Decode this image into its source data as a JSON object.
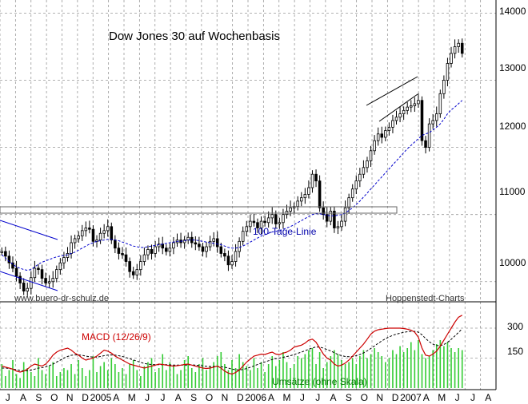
{
  "chart_data": [
    {
      "type": "candlestick",
      "title": "Dow Jones 30 auf Wochenbasis",
      "source_left": "www.buero-dr-schulz.de",
      "source_right": "Hoppenstedt-Charts",
      "y_ticks": [
        "14000",
        "13000",
        "12000",
        "11000",
        "10000"
      ],
      "ylim": [
        9700,
        14100
      ],
      "x_ticks": [
        "J",
        "A",
        "S",
        "O",
        "N",
        "D",
        "2005",
        "A",
        "M",
        "J",
        "J",
        "A",
        "S",
        "O",
        "N",
        "D",
        "2006",
        "A",
        "M",
        "J",
        "J",
        "A",
        "S",
        "O",
        "N",
        "D",
        "2007",
        "A",
        "M",
        "J",
        "J",
        "A"
      ],
      "moving_average_label": "100-Tage-Linie",
      "close_series": {
        "name": "Dow Jones 30",
        "values": [
          10450,
          10380,
          10280,
          10200,
          10080,
          9980,
          9860,
          9900,
          10060,
          10200,
          10180,
          10050,
          9980,
          10000,
          10050,
          10180,
          10280,
          10360,
          10420,
          10580,
          10640,
          10680,
          10760,
          10800,
          10780,
          10600,
          10620,
          10720,
          10760,
          10820,
          10620,
          10500,
          10420,
          10400,
          10300,
          10150,
          10100,
          10180,
          10300,
          10400,
          10480,
          10420,
          10520,
          10560,
          10500,
          10450,
          10500,
          10580,
          10620,
          10580,
          10620,
          10660,
          10580,
          10560,
          10520,
          10450,
          10520,
          10600,
          10640,
          10520,
          10420,
          10380,
          10250,
          10300,
          10450,
          10600,
          10750,
          10820,
          10900,
          10880,
          10800,
          10900,
          10880,
          10950,
          11000,
          10860,
          10880,
          11000,
          11050,
          11100,
          11120,
          11200,
          11250,
          11300,
          11400,
          11600,
          11500,
          11100,
          11000,
          10900,
          11050,
          10800,
          10820,
          10900,
          11100,
          11250,
          11380,
          11500,
          11600,
          11700,
          11800,
          11950,
          12100,
          12200,
          12150,
          12250,
          12300,
          12400,
          12450,
          12500,
          12550,
          12600,
          12620,
          12650,
          12700,
          12100,
          12000,
          12350,
          12400,
          12500,
          12800,
          13000,
          13250,
          13400,
          13500,
          13550,
          13400
        ]
      },
      "moving_average": {
        "name": "100-Tage-Linie",
        "values": [
          10400,
          10350,
          10300,
          10260,
          10220,
          10200,
          10180,
          10170,
          10180,
          10220,
          10260,
          10290,
          10310,
          10330,
          10350,
          10370,
          10380,
          10390,
          10400,
          10420,
          10440,
          10470,
          10500,
          10530,
          10560,
          10580,
          10600,
          10610,
          10620,
          10630,
          10630,
          10620,
          10610,
          10590,
          10570,
          10550,
          10530,
          10520,
          10510,
          10510,
          10520,
          10530,
          10540,
          10550,
          10560,
          10570,
          10580,
          10590,
          10600,
          10600,
          10610,
          10620,
          10620,
          10620,
          10610,
          10600,
          10590,
          10580,
          10570,
          10560,
          10550,
          10530,
          10510,
          10500,
          10500,
          10510,
          10530,
          10560,
          10590,
          10620,
          10650,
          10680,
          10700,
          10720,
          10740,
          10750,
          10760,
          10780,
          10800,
          10820,
          10850,
          10880,
          10910,
          10940,
          10970,
          11000,
          11010,
          11010,
          11000,
          10990,
          10980,
          10980,
          10990,
          11000,
          11020,
          11060,
          11100,
          11150,
          11200,
          11260,
          11320,
          11380,
          11440,
          11500,
          11560,
          11620,
          11680,
          11740,
          11800,
          11860,
          11920,
          11980,
          12030,
          12080,
          12130,
          12180,
          12200,
          12220,
          12260,
          12300,
          12350,
          12420,
          12500,
          12560,
          12600,
          12650,
          12700
        ]
      }
    },
    {
      "type": "line",
      "series": [
        {
          "name": "MACD (12/26/9)",
          "color": "#cc0000"
        },
        {
          "name": "Signal",
          "color": "#000000"
        }
      ],
      "volume_label": "Umsätze (ohne Skala)",
      "y_ticks": [
        "300",
        "150"
      ],
      "ylim": [
        0,
        400
      ],
      "macd_values": [
        110,
        105,
        100,
        95,
        85,
        80,
        85,
        95,
        110,
        120,
        115,
        110,
        120,
        140,
        165,
        180,
        190,
        195,
        200,
        190,
        175,
        165,
        150,
        140,
        145,
        150,
        160,
        175,
        190,
        185,
        175,
        160,
        150,
        140,
        130,
        120,
        115,
        110,
        105,
        100,
        105,
        110,
        115,
        120,
        118,
        115,
        112,
        110,
        112,
        115,
        118,
        120,
        115,
        110,
        105,
        100,
        98,
        100,
        105,
        110,
        100,
        85,
        75,
        70,
        78,
        90,
        110,
        130,
        145,
        160,
        165,
        170,
        168,
        175,
        180,
        170,
        168,
        175,
        180,
        190,
        205,
        210,
        215,
        225,
        240,
        245,
        230,
        200,
        170,
        150,
        140,
        120,
        110,
        115,
        125,
        140,
        160,
        180,
        200,
        220,
        245,
        270,
        285,
        292,
        295,
        298,
        300,
        300,
        300,
        300,
        298,
        295,
        290,
        280,
        255,
        200,
        165,
        160,
        170,
        185,
        210,
        240,
        270,
        300,
        330,
        355,
        365
      ],
      "signal_values": [
        100,
        100,
        98,
        95,
        92,
        88,
        86,
        87,
        90,
        95,
        100,
        102,
        106,
        112,
        120,
        130,
        140,
        150,
        158,
        164,
        166,
        166,
        164,
        160,
        157,
        155,
        155,
        158,
        162,
        165,
        166,
        165,
        162,
        158,
        153,
        147,
        141,
        135,
        129,
        123,
        120,
        118,
        117,
        117,
        117,
        117,
        116,
        115,
        115,
        115,
        115,
        116,
        116,
        115,
        113,
        111,
        109,
        108,
        108,
        108,
        107,
        104,
        100,
        95,
        92,
        91,
        93,
        98,
        104,
        111,
        118,
        125,
        131,
        137,
        143,
        147,
        150,
        154,
        158,
        162,
        168,
        174,
        180,
        187,
        194,
        201,
        206,
        205,
        200,
        193,
        186,
        177,
        168,
        162,
        158,
        157,
        158,
        162,
        168,
        176,
        186,
        198,
        211,
        224,
        236,
        247,
        256,
        264,
        270,
        275,
        279,
        282,
        284,
        284,
        280,
        267,
        248,
        232,
        220,
        213,
        212,
        218,
        229,
        244,
        261,
        279,
        296
      ],
      "volume_values": [
        120,
        60,
        90,
        140,
        70,
        50,
        130,
        100,
        80,
        60,
        150,
        90,
        70,
        110,
        130,
        60,
        80,
        100,
        90,
        120,
        70,
        140,
        100,
        60,
        90,
        160,
        80,
        110,
        130,
        90,
        150,
        120,
        80,
        100,
        70,
        120,
        140,
        90,
        60,
        110,
        130,
        150,
        80,
        100,
        170,
        90,
        130,
        110,
        70,
        90,
        140,
        160,
        100,
        80,
        120,
        150,
        90,
        110,
        130,
        160,
        180,
        120,
        90,
        140,
        100,
        170,
        130,
        110,
        90,
        150,
        100,
        130,
        80,
        120,
        160,
        110,
        140,
        180,
        130,
        100,
        120,
        160,
        150,
        170,
        190,
        200,
        120,
        180,
        100,
        130,
        160,
        190,
        170,
        140,
        120,
        130,
        150,
        120,
        160,
        190,
        150,
        170,
        200,
        180,
        160,
        130,
        150,
        190,
        170,
        210,
        180,
        200,
        230,
        190,
        240,
        170,
        150,
        160,
        190,
        220,
        240,
        210,
        230,
        200,
        180,
        200,
        190
      ]
    }
  ]
}
